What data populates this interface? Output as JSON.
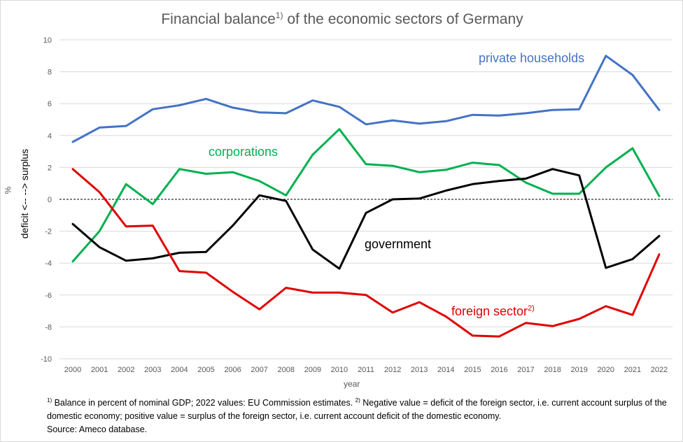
{
  "title": "Financial balance",
  "title_note": "1)",
  "title_rest": "of the economic sectors of Germany",
  "chart_data": {
    "type": "line",
    "x": [
      2000,
      2001,
      2002,
      2003,
      2004,
      2005,
      2006,
      2007,
      2008,
      2009,
      2010,
      2011,
      2012,
      2013,
      2014,
      2015,
      2016,
      2017,
      2018,
      2019,
      2020,
      2021,
      2022
    ],
    "ylim": [
      -10,
      10
    ],
    "yticks": [
      -10,
      -8,
      -6,
      -4,
      -2,
      0,
      2,
      4,
      6,
      8,
      10
    ],
    "xlabel": "year",
    "ylabel_unit": "%",
    "ylabel": "deficit <-- --> surplus",
    "grid": true,
    "zero_line": "dashed",
    "series": [
      {
        "name": "private households",
        "color": "#4472c4",
        "values": [
          3.6,
          4.5,
          4.6,
          5.65,
          5.9,
          6.3,
          5.75,
          5.45,
          5.4,
          6.2,
          5.8,
          4.7,
          4.95,
          4.75,
          4.9,
          5.3,
          5.25,
          5.4,
          5.6,
          5.65,
          9.0,
          7.8,
          5.6
        ]
      },
      {
        "name": "corporations",
        "color": "#00b050",
        "values": [
          -3.9,
          -2.0,
          0.95,
          -0.3,
          1.9,
          1.6,
          1.7,
          1.15,
          0.25,
          2.8,
          4.4,
          2.2,
          2.1,
          1.7,
          1.85,
          2.3,
          2.15,
          1.05,
          0.35,
          0.35,
          2.0,
          3.2,
          0.2
        ]
      },
      {
        "name": "government",
        "color": "#000000",
        "values": [
          -1.55,
          -3.0,
          -3.85,
          -3.7,
          -3.35,
          -3.3,
          -1.65,
          0.25,
          -0.1,
          -3.15,
          -4.35,
          -0.85,
          0.0,
          0.05,
          0.55,
          0.95,
          1.15,
          1.3,
          1.9,
          1.5,
          -4.3,
          -3.75,
          -2.3
        ]
      },
      {
        "name": "foreign sector",
        "name_note": "2)",
        "color": "#e00000",
        "values": [
          1.9,
          0.45,
          -1.7,
          -1.65,
          -4.5,
          -4.6,
          -5.8,
          -6.9,
          -5.55,
          -5.85,
          -5.85,
          -6.0,
          -7.1,
          -6.45,
          -7.35,
          -8.55,
          -8.6,
          -7.75,
          -7.95,
          -7.5,
          -6.7,
          -7.25,
          -3.45
        ]
      }
    ]
  },
  "footnote": {
    "n1_mark": "1)",
    "n1_text": " Balance in percent of nominal GDP; 2022 values: EU Commission estimates. ",
    "n2_mark": "2)",
    "n2_text": " Negative value = deficit of the foreign sector, i.e. current account surplus of the domestic economy; positive value = surplus of the foreign sector, i.e. current account deficit of the domestic economy.",
    "source": "Source: Ameco database."
  }
}
